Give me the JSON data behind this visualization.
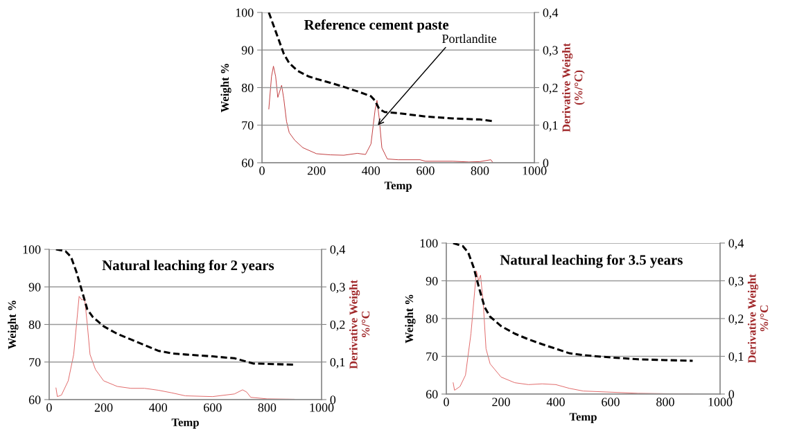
{
  "chart_data": [
    {
      "type": "line",
      "title": "Reference cement paste",
      "xlabel": "Temp",
      "ylabel": "Weight %",
      "y2label": "Derivative Weight\n(%/°C)",
      "xlim": [
        0,
        1000
      ],
      "xticks": [
        0,
        200,
        400,
        600,
        800,
        1000
      ],
      "ylim": [
        60,
        100
      ],
      "yticks": [
        60,
        70,
        80,
        90,
        100
      ],
      "y2lim": [
        0,
        0.4
      ],
      "y2ticks": [
        {
          "value": 0,
          "label": "0"
        },
        {
          "value": 0.1,
          "label": "0,1"
        },
        {
          "value": 0.2,
          "label": "0,2"
        },
        {
          "value": 0.3,
          "label": "0,3"
        },
        {
          "value": 0.4,
          "label": "0,4"
        }
      ],
      "grid": "y",
      "annotations": [
        {
          "text": "Portlandite",
          "x": 425,
          "y": 70
        }
      ],
      "series": [
        {
          "color": "#000000",
          "line_style": "dashed",
          "x": [
            25,
            50,
            80,
            100,
            130,
            170,
            200,
            250,
            300,
            350,
            400,
            415,
            430,
            450,
            500,
            600,
            700,
            800,
            845
          ],
          "values": [
            100,
            95,
            89,
            86.5,
            84.5,
            83,
            82.3,
            81.3,
            80.2,
            79,
            77.7,
            76.5,
            74.3,
            73.5,
            73.2,
            72.3,
            71.8,
            71.5,
            71.1
          ]
        },
        {
          "axis": "y2",
          "color": "#c0393b",
          "line_style": "solid",
          "x": [
            25,
            35,
            42,
            50,
            58,
            65,
            72,
            80,
            90,
            100,
            120,
            150,
            200,
            250,
            300,
            350,
            380,
            400,
            415,
            422,
            430,
            440,
            460,
            500,
            580,
            600,
            700,
            760,
            800,
            840,
            848
          ],
          "values": [
            0.143,
            0.23,
            0.257,
            0.23,
            0.174,
            0.19,
            0.206,
            0.17,
            0.11,
            0.08,
            0.06,
            0.04,
            0.024,
            0.021,
            0.02,
            0.025,
            0.022,
            0.05,
            0.14,
            0.166,
            0.12,
            0.04,
            0.01,
            0.008,
            0.008,
            0.004,
            0.004,
            0.002,
            0.003,
            0.008,
            0
          ]
        }
      ]
    },
    {
      "type": "line",
      "title": "Natural leaching for 2 years",
      "xlabel": "Temp",
      "ylabel": "Weight %",
      "y2label": "Derivative Weight\n%/°C",
      "xlim": [
        0,
        1000
      ],
      "xticks": [
        0,
        200,
        400,
        600,
        800,
        1000
      ],
      "ylim": [
        60,
        100
      ],
      "yticks": [
        60,
        70,
        80,
        90,
        100
      ],
      "y2lim": [
        0,
        0.4
      ],
      "y2ticks": [
        {
          "value": 0,
          "label": "0"
        },
        {
          "value": 0.1,
          "label": "0,1"
        },
        {
          "value": 0.2,
          "label": "0,2"
        },
        {
          "value": 0.3,
          "label": "0,3"
        },
        {
          "value": 0.4,
          "label": "0,4"
        }
      ],
      "grid": "y",
      "series": [
        {
          "color": "#000000",
          "line_style": "dashed",
          "x": [
            25,
            60,
            80,
            100,
            120,
            140,
            160,
            200,
            250,
            300,
            350,
            400,
            450,
            500,
            600,
            680,
            720,
            750,
            800,
            900
          ],
          "values": [
            100,
            99.5,
            98,
            94,
            89,
            84,
            82,
            79.5,
            77.5,
            76,
            74.5,
            73,
            72.3,
            72,
            71.5,
            71,
            70.2,
            69.6,
            69.5,
            69.3
          ]
        },
        {
          "axis": "y2",
          "color": "#e06666",
          "line_style": "solid",
          "x": [
            25,
            30,
            45,
            70,
            90,
            110,
            120,
            130,
            140,
            150,
            170,
            200,
            250,
            300,
            350,
            400,
            450,
            500,
            600,
            680,
            710,
            725,
            740,
            800,
            900
          ],
          "values": [
            0.031,
            0.008,
            0.012,
            0.05,
            0.12,
            0.275,
            0.265,
            0.27,
            0.2,
            0.12,
            0.08,
            0.05,
            0.035,
            0.03,
            0.03,
            0.025,
            0.018,
            0.01,
            0.008,
            0.015,
            0.026,
            0.02,
            0.006,
            0.002,
            0.001
          ]
        }
      ]
    },
    {
      "type": "line",
      "title": "Natural leaching for 3.5 years",
      "xlabel": "Temp",
      "ylabel": "Weight %",
      "y2label": "Derivative Weight\n%/°C",
      "xlim": [
        0,
        1000
      ],
      "xticks": [
        0,
        200,
        400,
        600,
        800,
        1000
      ],
      "ylim": [
        60,
        100
      ],
      "yticks": [
        60,
        70,
        80,
        90,
        100
      ],
      "y2lim": [
        0,
        0.4
      ],
      "y2ticks": [
        {
          "value": 0,
          "label": "0"
        },
        {
          "value": 0.1,
          "label": "0,1"
        },
        {
          "value": 0.2,
          "label": "0,2"
        },
        {
          "value": 0.3,
          "label": "0,3"
        },
        {
          "value": 0.4,
          "label": "0,4"
        }
      ],
      "grid": "y",
      "series": [
        {
          "color": "#000000",
          "line_style": "dashed",
          "x": [
            25,
            60,
            80,
            100,
            120,
            140,
            160,
            200,
            250,
            300,
            350,
            400,
            450,
            500,
            600,
            700,
            800,
            900
          ],
          "values": [
            100,
            99.2,
            97.5,
            93.5,
            88,
            83,
            80.5,
            78,
            76,
            74.5,
            73.2,
            72,
            70.8,
            70.3,
            69.7,
            69.2,
            69,
            68.8
          ]
        },
        {
          "axis": "y2",
          "color": "#e06666",
          "line_style": "solid",
          "x": [
            25,
            30,
            50,
            70,
            90,
            110,
            118,
            125,
            135,
            145,
            160,
            200,
            250,
            300,
            350,
            400,
            450,
            500,
            600,
            700,
            800,
            900
          ],
          "values": [
            0.03,
            0.01,
            0.02,
            0.05,
            0.16,
            0.326,
            0.3,
            0.315,
            0.24,
            0.12,
            0.08,
            0.045,
            0.03,
            0.025,
            0.027,
            0.025,
            0.015,
            0.008,
            0.005,
            0.002,
            0.001,
            0
          ]
        }
      ]
    }
  ]
}
